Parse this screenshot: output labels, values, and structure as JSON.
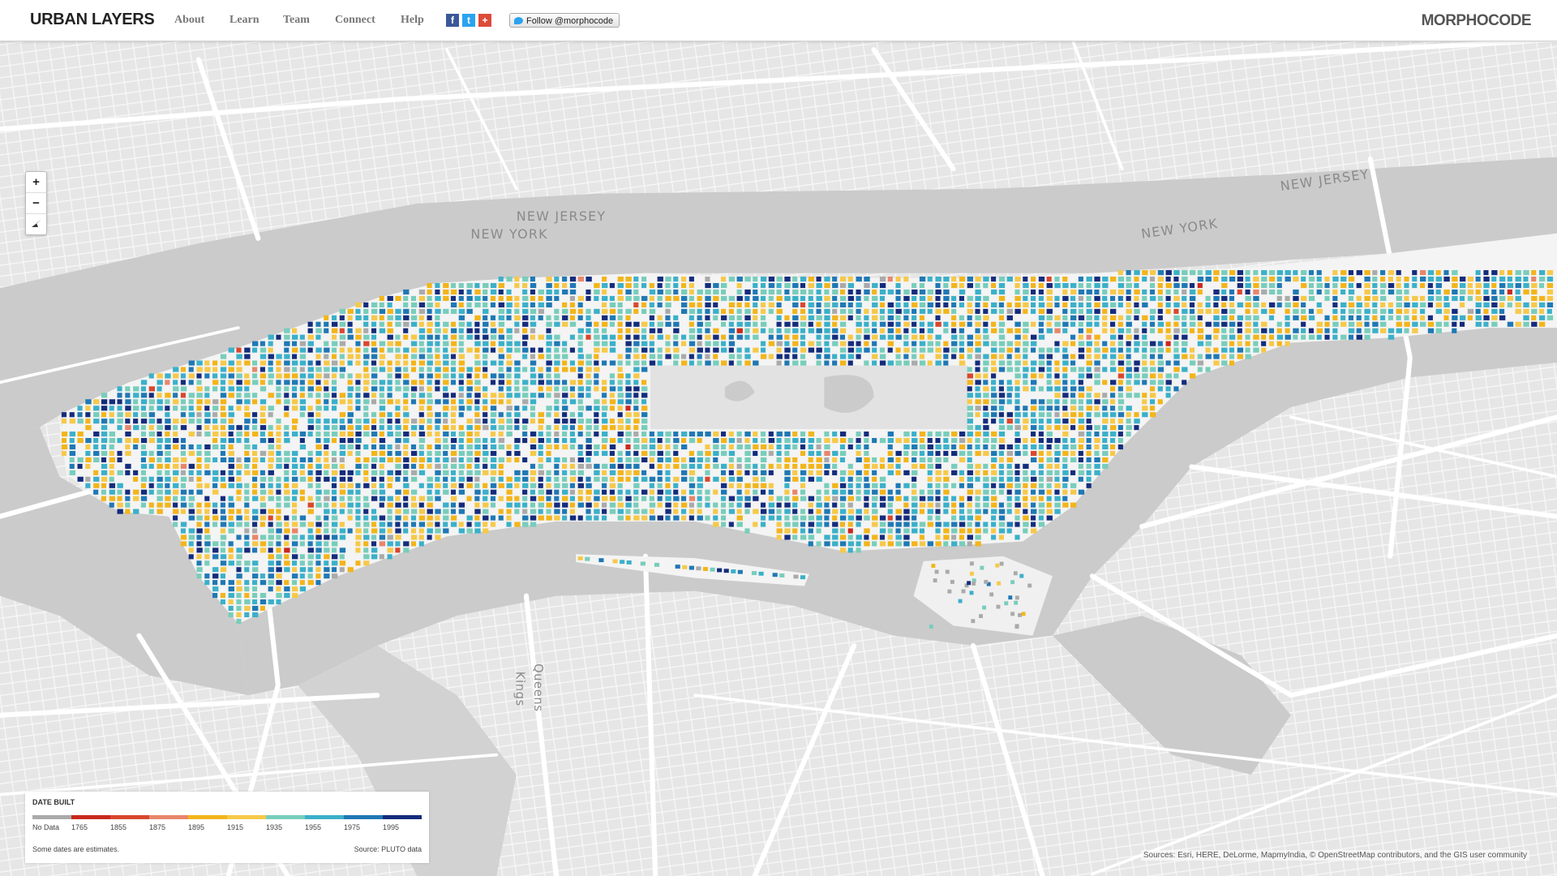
{
  "header": {
    "title": "URBAN LAYERS",
    "nav": [
      "About",
      "Learn",
      "Team",
      "Connect",
      "Help"
    ],
    "follow": "Follow @morphocode",
    "brand": "MORPHOCODE"
  },
  "zoom": {
    "in": "+",
    "out": "−"
  },
  "map": {
    "labels": [
      {
        "text": "NEW JERSEY"
      },
      {
        "text": "NEW YORK"
      },
      {
        "text": "NEW JERSEY"
      },
      {
        "text": "NEW YORK"
      },
      {
        "text": "Queens"
      },
      {
        "text": "Kings"
      }
    ],
    "attribution": "Sources: Esri, HERE, DeLorme, MapmyIndia, © OpenStreetMap contributors, and the GIS user community"
  },
  "legend": {
    "title": "DATE BUILT",
    "items": [
      {
        "label": "No Data",
        "color": "#aaaaaa"
      },
      {
        "label": "1765",
        "color": "#c8281e"
      },
      {
        "label": "1855",
        "color": "#d9472e"
      },
      {
        "label": "1875",
        "color": "#e8866c"
      },
      {
        "label": "1895",
        "color": "#f2b51b"
      },
      {
        "label": "1915",
        "color": "#f6c94a"
      },
      {
        "label": "1935",
        "color": "#78cdbb"
      },
      {
        "label": "1955",
        "color": "#3bb0c9"
      },
      {
        "label": "1975",
        "color": "#1f78b4"
      },
      {
        "label": "1995",
        "color": "#142c7c"
      }
    ],
    "note": "Some dates are estimates.",
    "source": "Source: PLUTO data"
  }
}
